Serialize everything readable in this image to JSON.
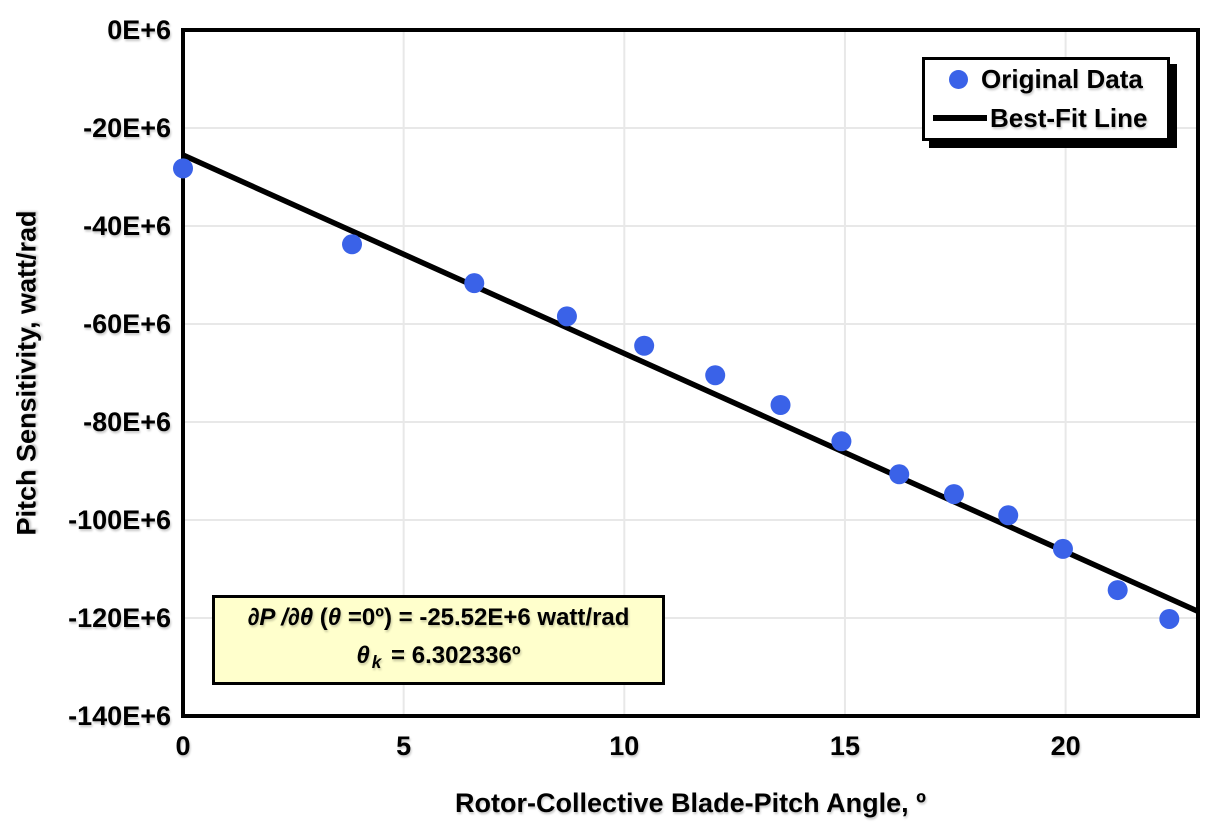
{
  "colors": {
    "background": "#FFFFFF",
    "dot": "#3A62E8",
    "fit_line": "#000000",
    "grid": "#E8E8E8",
    "axis_border": "#000000",
    "annotation_bg": "#FFFFCC"
  },
  "chart_data": {
    "type": "scatter",
    "title": "",
    "xlabel": "Rotor-Collective Blade-Pitch Angle, º",
    "ylabel": "Pitch Sensitivity, watt/rad",
    "xlim": [
      0,
      23
    ],
    "ylim": [
      -140,
      0
    ],
    "y_unit_scale": "E+6",
    "grid": true,
    "legend_position": "top-right",
    "x_ticks": [
      0,
      5,
      10,
      15,
      20
    ],
    "x_tick_labels": [
      "0",
      "5",
      "10",
      "15",
      "20"
    ],
    "y_ticks": [
      0,
      -20,
      -40,
      -60,
      -80,
      -100,
      -120,
      -140
    ],
    "y_tick_labels": [
      "0E+6",
      "-20E+6",
      "-40E+6",
      "-60E+6",
      "-80E+6",
      "-100E+6",
      "-120E+6",
      "-140E+6"
    ],
    "series": [
      {
        "name": "Original Data",
        "type": "scatter",
        "color": "#3A62E8",
        "x": [
          0.0,
          3.83,
          6.6,
          8.7,
          10.45,
          12.06,
          13.54,
          14.92,
          16.23,
          17.47,
          18.7,
          19.94,
          21.18,
          22.35
        ],
        "y": [
          -28.24,
          -43.73,
          -51.66,
          -58.44,
          -64.44,
          -70.46,
          -76.53,
          -83.94,
          -90.67,
          -94.71,
          -99.04,
          -105.9,
          -114.3,
          -120.2
        ]
      },
      {
        "name": "Best-Fit Line",
        "type": "line",
        "color": "#000000",
        "x": [
          0,
          23
        ],
        "y": [
          -25.52,
          -118.65
        ]
      }
    ]
  },
  "annotation": {
    "l1_partial": "∂P /∂θ",
    "l1_open": " (",
    "l1_theta": "θ",
    "l1_rest": " =0º) = -25.52E+6 watt/rad",
    "l2_theta": "θ",
    "l2_sub": "k",
    "l2_rest": " = 6.302336º"
  }
}
